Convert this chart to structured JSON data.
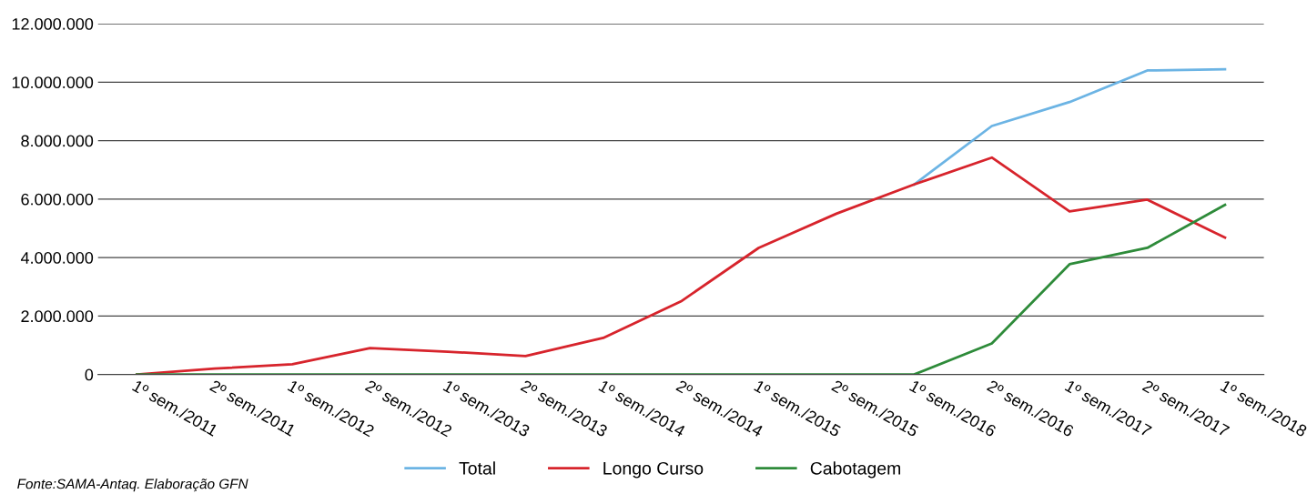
{
  "chart_data": {
    "type": "line",
    "categories": [
      "1º sem./2011",
      "2º sem./2011",
      "1º sem./2012",
      "2º sem./2012",
      "1º sem./2013",
      "2º sem./2013",
      "1º sem./2014",
      "2º sem./2014",
      "1º sem./2015",
      "2º sem./2015",
      "1º sem./2016",
      "2º sem./2016",
      "1º sem./2017",
      "2º sem./2017",
      "1º sem./2018"
    ],
    "series": [
      {
        "name": "Total",
        "color": "#6cb4e4",
        "values": [
          null,
          null,
          null,
          null,
          null,
          null,
          null,
          null,
          null,
          null,
          6500000,
          8500000,
          9320000,
          10400000,
          10440000
        ]
      },
      {
        "name": "Longo Curso",
        "color": "#d7242c",
        "values": [
          0,
          200000,
          350000,
          900000,
          780000,
          630000,
          1250000,
          2500000,
          4330000,
          5500000,
          6500000,
          7420000,
          5580000,
          5980000,
          4680000
        ]
      },
      {
        "name": "Cabotagem",
        "color": "#2e8b3a",
        "values": [
          0,
          0,
          0,
          0,
          0,
          0,
          0,
          0,
          0,
          0,
          0,
          1060000,
          3770000,
          4330000,
          5800000
        ]
      }
    ],
    "ylim": [
      0,
      12000000
    ],
    "yticks": [
      {
        "value": 0,
        "label": "0"
      },
      {
        "value": 2000000,
        "label": "2.000.000"
      },
      {
        "value": 4000000,
        "label": "4.000.000"
      },
      {
        "value": 6000000,
        "label": "6.000.000"
      },
      {
        "value": 8000000,
        "label": "8.000.000"
      },
      {
        "value": 10000000,
        "label": "10.000.000"
      },
      {
        "value": 12000000,
        "label": "12.000.000"
      }
    ],
    "grid": "y",
    "legend": "bottom",
    "marker": "none",
    "line_style": "solid",
    "annotations": [
      "Fonte:SAMA-Antaq. Elaboração GFN"
    ]
  }
}
